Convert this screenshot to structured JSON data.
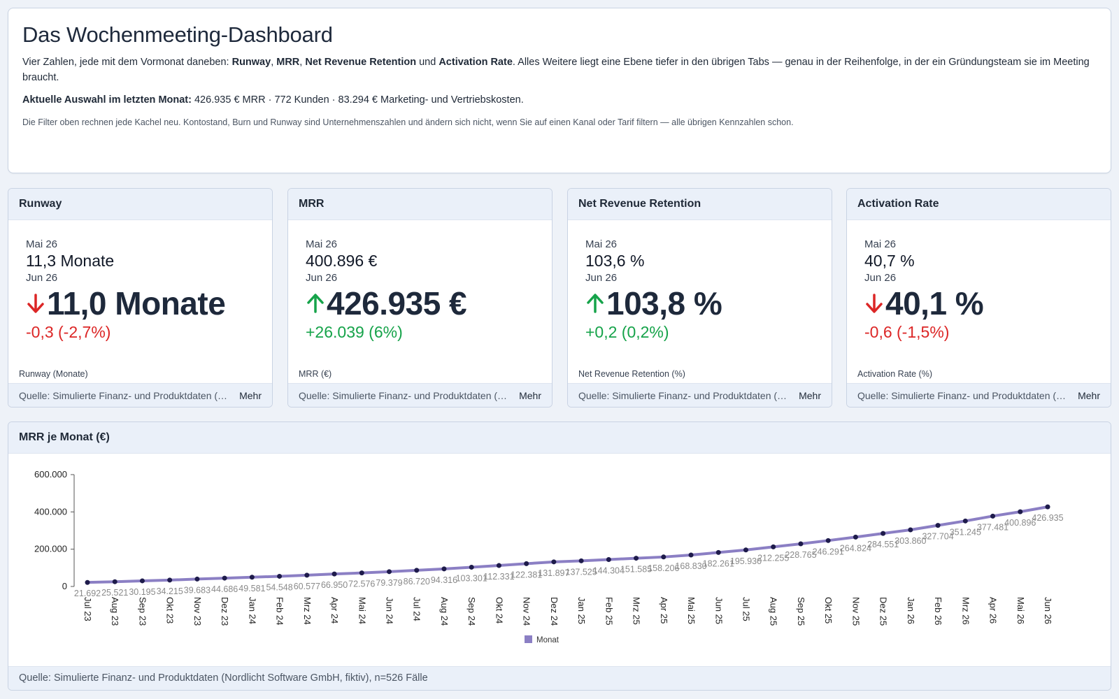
{
  "intro": {
    "title": "Das Wochenmeeting-Dashboard",
    "lead_1": "Vier Zahlen, jede mit dem Vormonat daneben: ",
    "lead_b1": "Runway",
    "lead_s1": ", ",
    "lead_b2": "MRR",
    "lead_s2": ", ",
    "lead_b3": "Net Revenue Retention",
    "lead_s3": " und ",
    "lead_b4": "Activation Rate",
    "lead_2": ". Alles Weitere liegt eine Ebene tiefer in den übrigen Tabs — genau in der Reihenfolge, in der ein Gründungsteam sie im Meeting braucht.",
    "selection_label": "Aktuelle Auswahl im letzten Monat:",
    "selection_text": " 426.935 € MRR · 772 Kunden · 83.294 € Marketing- und Vertriebskosten.",
    "note": "Die Filter oben rechnen jede Kachel neu. Kontostand, Burn und Runway sind Unternehmenszahlen und ändern sich nicht, wenn Sie auf einen Kanal oder Tarif filtern — alle übrigen Kennzahlen schon."
  },
  "kpis": [
    {
      "title": "Runway",
      "prev_label": "Mai 26",
      "prev_value": "11,3 Monate",
      "cur_label": "Jun 26",
      "cur_value": "11,0 Monate",
      "direction": "down",
      "delta": "-0,3 (-2,7%)",
      "delta_class": "neg",
      "unit": "Runway (Monate)",
      "source": "Quelle: Simulierte Finanz- und Produktdaten (Nordlicht Software GmbH, fiktiv)",
      "more": "Mehr"
    },
    {
      "title": "MRR",
      "prev_label": "Mai 26",
      "prev_value": "400.896 €",
      "cur_label": "Jun 26",
      "cur_value": "426.935 €",
      "direction": "up",
      "delta": "+26.039 (6%)",
      "delta_class": "pos",
      "unit": "MRR (€)",
      "source": "Quelle: Simulierte Finanz- und Produktdaten (Nordlicht Software GmbH, fiktiv)",
      "more": "Mehr"
    },
    {
      "title": "Net Revenue Retention",
      "prev_label": "Mai 26",
      "prev_value": "103,6 %",
      "cur_label": "Jun 26",
      "cur_value": "103,8 %",
      "direction": "up",
      "delta": "+0,2 (0,2%)",
      "delta_class": "pos",
      "unit": "Net Revenue Retention (%)",
      "source": "Quelle: Simulierte Finanz- und Produktdaten (Nordlicht Software GmbH, fiktiv)",
      "more": "Mehr"
    },
    {
      "title": "Activation Rate",
      "prev_label": "Mai 26",
      "prev_value": "40,7 %",
      "cur_label": "Jun 26",
      "cur_value": "40,1 %",
      "direction": "down",
      "delta": "-0,6 (-1,5%)",
      "delta_class": "neg",
      "unit": "Activation Rate (%)",
      "source": "Quelle: Simulierte Finanz- und Produktdaten (Nordlicht Software GmbH, fiktiv)",
      "more": "Mehr"
    }
  ],
  "colors": {
    "up": "#16a34a",
    "down": "#dc2626",
    "series": "#8b7fc4",
    "point": "#1e1b4b"
  },
  "chart_card": {
    "title": "MRR je Monat (€)",
    "source": "Quelle: Simulierte Finanz- und Produktdaten (Nordlicht Software GmbH, fiktiv), n=526 Fälle"
  },
  "chart_data": {
    "type": "line",
    "title": "MRR je Monat (€)",
    "categories": [
      "Jul 23",
      "Aug 23",
      "Sep 23",
      "Okt 23",
      "Nov 23",
      "Dez 23",
      "Jan 24",
      "Feb 24",
      "Mrz 24",
      "Apr 24",
      "Mai 24",
      "Jun 24",
      "Jul 24",
      "Aug 24",
      "Sep 24",
      "Okt 24",
      "Nov 24",
      "Dez 24",
      "Jan 25",
      "Feb 25",
      "Mrz 25",
      "Apr 25",
      "Mai 25",
      "Jun 25",
      "Jul 25",
      "Aug 25",
      "Sep 25",
      "Okt 25",
      "Nov 25",
      "Dez 25",
      "Jan 26",
      "Feb 26",
      "Mrz 26",
      "Apr 26",
      "Mai 26",
      "Jun 26"
    ],
    "series": [
      {
        "name": "Monat",
        "values": [
          21692,
          25521,
          30195,
          34215,
          39683,
          44686,
          49581,
          54548,
          60577,
          66950,
          72576,
          79379,
          86720,
          94316,
          103301,
          112331,
          122381,
          131897,
          137525,
          144304,
          151585,
          158206,
          168830,
          182261,
          195930,
          212255,
          228765,
          246291,
          264824,
          284551,
          303860,
          327704,
          351245,
          377481,
          400896,
          426935
        ],
        "labels": [
          "21.692",
          "25.521",
          "30.195",
          "34.215",
          "39.683",
          "44.686",
          "49.581",
          "54.548",
          "60.577",
          "66.950",
          "72.576",
          "79.379",
          "86.720",
          "94.316",
          "103.301",
          "112.331",
          "122.381",
          "131.897",
          "137.525",
          "144.304",
          "151.585",
          "158.206",
          "168.830",
          "182.261",
          "195.930",
          "212.255",
          "228.765",
          "246.291",
          "264.824",
          "284.551",
          "303.860",
          "327.704",
          "351.245",
          "377.481",
          "400.896",
          "426.935"
        ]
      }
    ],
    "yticks": [
      "0",
      "200.000",
      "400.000",
      "600.000"
    ],
    "ytick_values": [
      0,
      200000,
      400000,
      600000
    ],
    "ylim": [
      0,
      600000
    ],
    "legend": "bottom",
    "grid": false
  }
}
